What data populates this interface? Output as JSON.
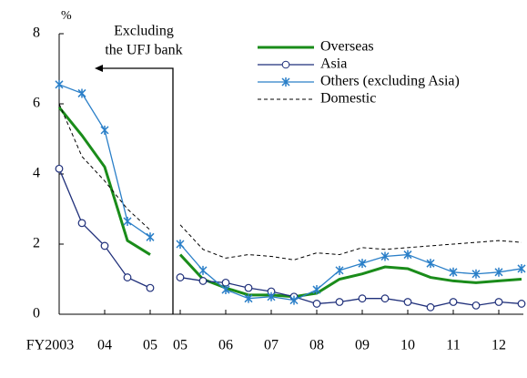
{
  "chart_data": {
    "type": "line",
    "y_unit_label": "%",
    "annotation": [
      "Excluding",
      "the UFJ bank"
    ],
    "categories": [
      "FY2003",
      null,
      "04",
      null,
      "05",
      null,
      "05",
      null,
      "06",
      null,
      "07",
      null,
      "08",
      null,
      "09",
      null,
      "10",
      null,
      "11",
      null,
      "12",
      null
    ],
    "series": [
      {
        "name": "Overseas",
        "color": "#1a8c1a",
        "width": 3,
        "marker": "none",
        "dash": false,
        "values": [
          5.9,
          5.1,
          4.2,
          2.1,
          1.7,
          null,
          1.7,
          1.0,
          0.75,
          0.55,
          0.55,
          0.5,
          0.6,
          1.0,
          1.15,
          1.35,
          1.3,
          1.05,
          0.95,
          0.9,
          0.95,
          1.0
        ]
      },
      {
        "name": "Asia",
        "color": "#1f2f7a",
        "width": 1.3,
        "marker": "circle",
        "dash": false,
        "values": [
          4.15,
          2.6,
          1.95,
          1.05,
          0.75,
          null,
          1.05,
          0.95,
          0.9,
          0.75,
          0.65,
          0.5,
          0.3,
          0.35,
          0.45,
          0.45,
          0.35,
          0.2,
          0.35,
          0.25,
          0.35,
          0.3
        ]
      },
      {
        "name": "Others (excluding Asia)",
        "color": "#2a7fc8",
        "width": 1.3,
        "marker": "star",
        "dash": false,
        "values": [
          6.55,
          6.3,
          5.25,
          2.65,
          2.2,
          null,
          2.0,
          1.25,
          0.7,
          0.45,
          0.5,
          0.4,
          0.7,
          1.25,
          1.45,
          1.65,
          1.7,
          1.45,
          1.2,
          1.15,
          1.2,
          1.3
        ]
      },
      {
        "name": "Domestic",
        "color": "#000000",
        "width": 1,
        "marker": "none",
        "dash": true,
        "values": [
          6.0,
          4.5,
          3.8,
          3.0,
          2.4,
          null,
          2.55,
          1.85,
          1.6,
          1.7,
          1.65,
          1.55,
          1.75,
          1.7,
          1.9,
          1.85,
          1.9,
          1.95,
          2.0,
          2.05,
          2.1,
          2.05
        ]
      }
    ],
    "ylim": [
      0,
      8
    ],
    "yticks": [
      0,
      2,
      4,
      6,
      8
    ],
    "grid": false,
    "legend": "top-right"
  }
}
